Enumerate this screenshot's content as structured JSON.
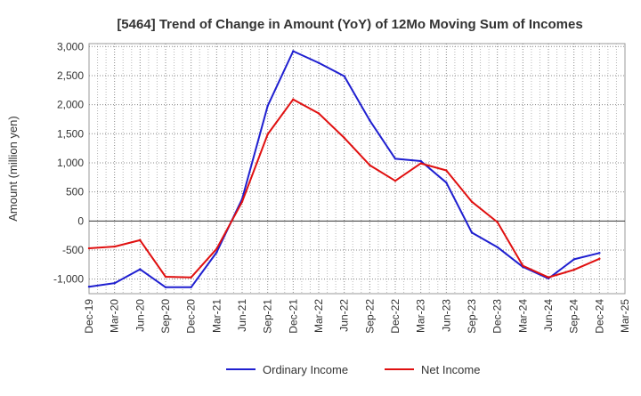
{
  "chart_data": {
    "type": "line",
    "title": "[5464]  Trend of Change in Amount (YoY) of 12Mo Moving Sum of Incomes",
    "xlabel": "",
    "ylabel": "Amount (million yen)",
    "ylim": [
      -1250,
      3050
    ],
    "yticks": [
      -1000,
      -500,
      0,
      500,
      1000,
      1500,
      2000,
      2500,
      3000
    ],
    "ytick_labels": [
      "-1,000",
      "-500",
      "0",
      "500",
      "1,000",
      "1,500",
      "2,000",
      "2,500",
      "3,000"
    ],
    "categories": [
      "Dec-19",
      "Mar-20",
      "Jun-20",
      "Sep-20",
      "Dec-20",
      "Mar-21",
      "Jun-21",
      "Sep-21",
      "Dec-21",
      "Mar-22",
      "Jun-22",
      "Sep-22",
      "Dec-22",
      "Mar-23",
      "Jun-23",
      "Sep-23",
      "Dec-23",
      "Mar-24",
      "Jun-24",
      "Sep-24",
      "Dec-24",
      "Mar-25"
    ],
    "grid": true,
    "legend_position": "bottom",
    "series": [
      {
        "name": "Ordinary Income",
        "color": "#1f1fd0",
        "values": [
          -1130,
          -1070,
          -830,
          -1140,
          -1140,
          -540,
          380,
          1980,
          2920,
          2720,
          2490,
          1730,
          1070,
          1030,
          660,
          -200,
          -450,
          -790,
          -990,
          -660,
          -550,
          null
        ]
      },
      {
        "name": "Net Income",
        "color": "#e01010",
        "values": [
          -470,
          -440,
          -330,
          -960,
          -970,
          -480,
          330,
          1490,
          2090,
          1850,
          1430,
          960,
          690,
          990,
          870,
          330,
          -20,
          -770,
          -970,
          -840,
          -650,
          null
        ]
      }
    ]
  }
}
